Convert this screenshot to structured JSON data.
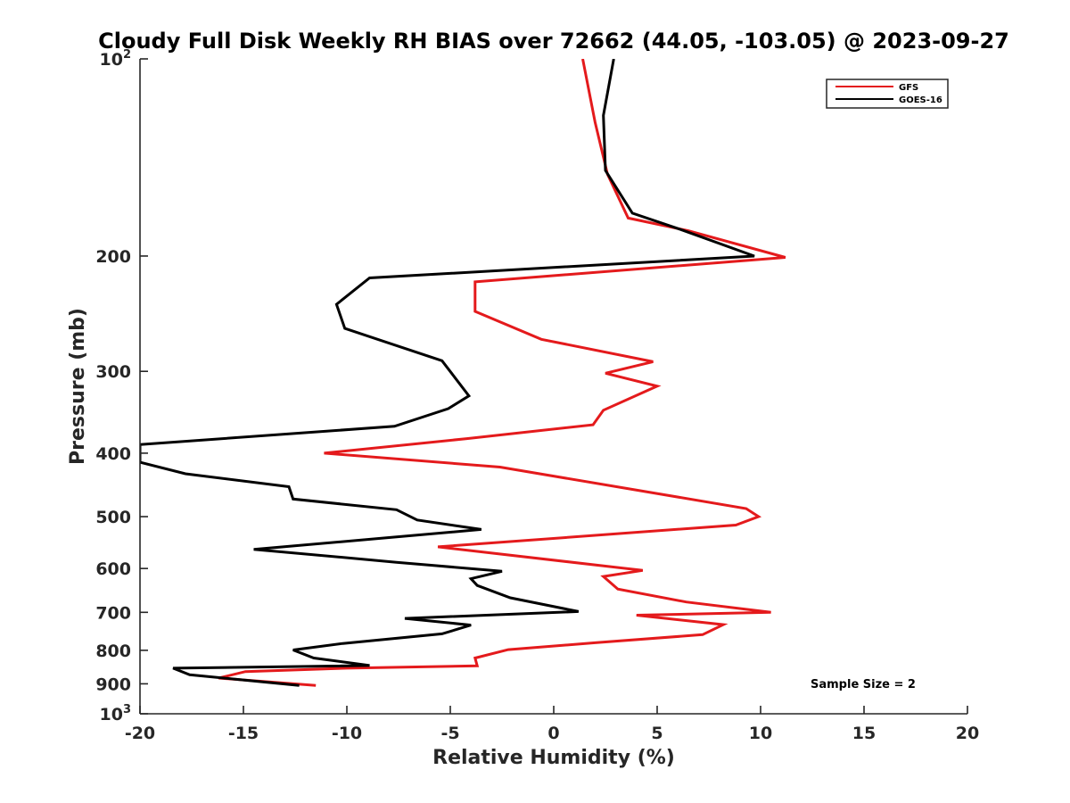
{
  "chart_data": {
    "type": "line",
    "title": "Cloudy Full Disk Weekly RH BIAS over 72662 (44.05, -103.05) @ 2023-09-27",
    "xlabel": "Relative Humidity (%)",
    "ylabel": "Pressure (mb)",
    "xlim": [
      -20,
      20
    ],
    "ylim": [
      100,
      1000
    ],
    "yscale": "log",
    "y_reversed": true,
    "x_ticks": [
      {
        "value": -20,
        "label": "-20"
      },
      {
        "value": -15,
        "label": "-15"
      },
      {
        "value": -10,
        "label": "-10"
      },
      {
        "value": -5,
        "label": "-5"
      },
      {
        "value": 0,
        "label": "0"
      },
      {
        "value": 5,
        "label": "5"
      },
      {
        "value": 10,
        "label": "10"
      },
      {
        "value": 15,
        "label": "15"
      },
      {
        "value": 20,
        "label": "20"
      }
    ],
    "y_ticks": [
      {
        "value": 100,
        "label": "10",
        "sup": "2"
      },
      {
        "value": 200,
        "label": "200",
        "sup": ""
      },
      {
        "value": 300,
        "label": "300",
        "sup": ""
      },
      {
        "value": 400,
        "label": "400",
        "sup": ""
      },
      {
        "value": 500,
        "label": "500",
        "sup": ""
      },
      {
        "value": 600,
        "label": "600",
        "sup": ""
      },
      {
        "value": 700,
        "label": "700",
        "sup": ""
      },
      {
        "value": 800,
        "label": "800",
        "sup": ""
      },
      {
        "value": 900,
        "label": "900",
        "sup": ""
      },
      {
        "value": 1000,
        "label": "10",
        "sup": "3"
      }
    ],
    "legend_position": "top-right",
    "grid": false,
    "annotation": "Sample Size = 2",
    "series": [
      {
        "name": "GFS",
        "color": "#e41a1c",
        "points": [
          [
            1.4,
            100
          ],
          [
            2.0,
            125
          ],
          [
            2.6,
            150
          ],
          [
            3.6,
            175
          ],
          [
            6.5,
            183
          ],
          [
            11.2,
            201
          ],
          [
            -3.8,
            219
          ],
          [
            -3.8,
            243
          ],
          [
            -0.6,
            268
          ],
          [
            4.8,
            290
          ],
          [
            2.5,
            302
          ],
          [
            5.0,
            316
          ],
          [
            2.4,
            344
          ],
          [
            1.9,
            362
          ],
          [
            -4.2,
            380
          ],
          [
            -11.1,
            400
          ],
          [
            -2.6,
            420
          ],
          [
            9.3,
            486
          ],
          [
            9.9,
            500
          ],
          [
            8.8,
            515
          ],
          [
            -5.6,
            556
          ],
          [
            4.3,
            604
          ],
          [
            2.4,
            617
          ],
          [
            3.1,
            645
          ],
          [
            6.4,
            675
          ],
          [
            10.5,
            700
          ],
          [
            4.0,
            707
          ],
          [
            8.2,
            731
          ],
          [
            7.2,
            757
          ],
          [
            2.0,
            779
          ],
          [
            -2.2,
            798
          ],
          [
            -3.8,
            822
          ],
          [
            -3.7,
            845
          ],
          [
            -10.0,
            852
          ],
          [
            -14.9,
            862
          ],
          [
            -16.2,
            882
          ],
          [
            -11.5,
            905
          ]
        ]
      },
      {
        "name": "GOES-16",
        "color": "#000000",
        "points": [
          [
            2.9,
            100
          ],
          [
            2.4,
            122
          ],
          [
            2.5,
            148
          ],
          [
            3.8,
            172
          ],
          [
            6.1,
            182
          ],
          [
            9.7,
            200
          ],
          [
            -8.9,
            216
          ],
          [
            -10.5,
            237
          ],
          [
            -10.1,
            258
          ],
          [
            -5.4,
            289
          ],
          [
            -4.1,
            327
          ],
          [
            -5.1,
            342
          ],
          [
            -7.7,
            364
          ],
          [
            -20.0,
            388
          ],
          [
            -20.0,
            413
          ],
          [
            -17.8,
            430
          ],
          [
            -12.8,
            450
          ],
          [
            -12.6,
            470
          ],
          [
            -7.6,
            488
          ],
          [
            -6.6,
            506
          ],
          [
            -3.5,
            523
          ],
          [
            -7.9,
            538
          ],
          [
            -14.5,
            561
          ],
          [
            -7.6,
            587
          ],
          [
            -2.5,
            606
          ],
          [
            -4.0,
            622
          ],
          [
            -3.7,
            637
          ],
          [
            -2.1,
            665
          ],
          [
            1.2,
            698
          ],
          [
            -7.2,
            715
          ],
          [
            -4.0,
            732
          ],
          [
            -5.4,
            755
          ],
          [
            -10.2,
            781
          ],
          [
            -12.6,
            799
          ],
          [
            -11.6,
            822
          ],
          [
            -8.9,
            844
          ],
          [
            -18.4,
            852
          ],
          [
            -17.6,
            872
          ],
          [
            -12.3,
            905
          ]
        ]
      }
    ]
  }
}
